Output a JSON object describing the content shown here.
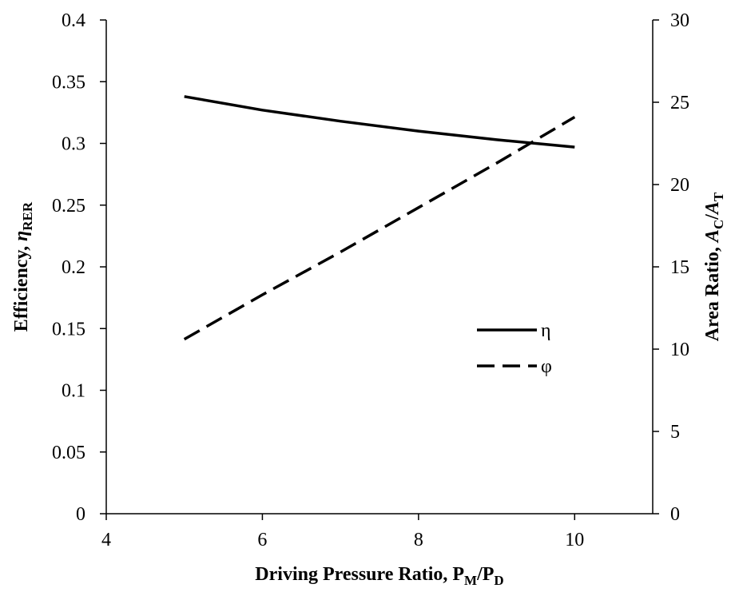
{
  "chart_data": {
    "type": "line",
    "xlabel": {
      "main": "Driving Pressure Ratio, P",
      "sub1": "M",
      "mid": "/P",
      "sub2": "D"
    },
    "ylabel_left": {
      "main": "Efficiency, ",
      "symbol": "η",
      "sub": "RER"
    },
    "ylabel_right": {
      "main": "Area Ratio, ",
      "sym1": "A",
      "sub1": "C",
      "slash": "/",
      "sym2": "A",
      "sub2": "T"
    },
    "xlim": [
      4,
      11
    ],
    "ylim_left": [
      0,
      0.4
    ],
    "ylim_right": [
      0,
      30
    ],
    "x_ticks": [
      4,
      6,
      8,
      10
    ],
    "y_left_ticks": [
      "0",
      "0.05",
      "0.1",
      "0.15",
      "0.2",
      "0.25",
      "0.3",
      "0.35",
      "0.4"
    ],
    "y_right_ticks": [
      "0",
      "5",
      "10",
      "15",
      "20",
      "25",
      "30"
    ],
    "grid": false,
    "legend_position": "right-middle",
    "series": [
      {
        "name": "η",
        "axis": "left",
        "style": "solid",
        "color": "#000000",
        "x": [
          5,
          6,
          7,
          8,
          9,
          10
        ],
        "y": [
          0.338,
          0.327,
          0.318,
          0.31,
          0.303,
          0.297
        ]
      },
      {
        "name": "φ",
        "axis": "right",
        "style": "dashed",
        "color": "#000000",
        "x": [
          5,
          6,
          7,
          8,
          9,
          10
        ],
        "y": [
          10.6,
          13.3,
          15.9,
          18.6,
          21.3,
          24.1
        ]
      }
    ]
  }
}
